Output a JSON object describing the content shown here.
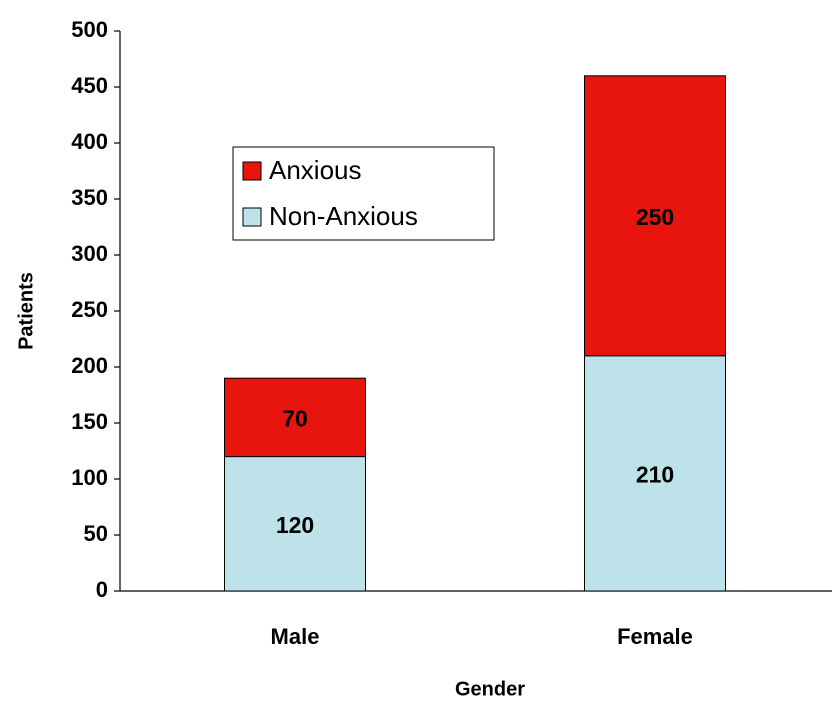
{
  "chart_data": {
    "type": "stacked_bar",
    "categories": [
      "Male",
      "Female"
    ],
    "series": [
      {
        "name": "Non-Anxious",
        "color": "#bde2ea",
        "values": [
          120,
          210
        ]
      },
      {
        "name": "Anxious",
        "color": "#e8150f",
        "values": [
          70,
          250
        ]
      }
    ],
    "x_label": "Gender",
    "y_label": "Patients",
    "ylim": [
      0,
      500
    ],
    "yticks": [
      0,
      50,
      100,
      150,
      200,
      250,
      300,
      350,
      400,
      450,
      500
    ],
    "legend": "upper left"
  }
}
